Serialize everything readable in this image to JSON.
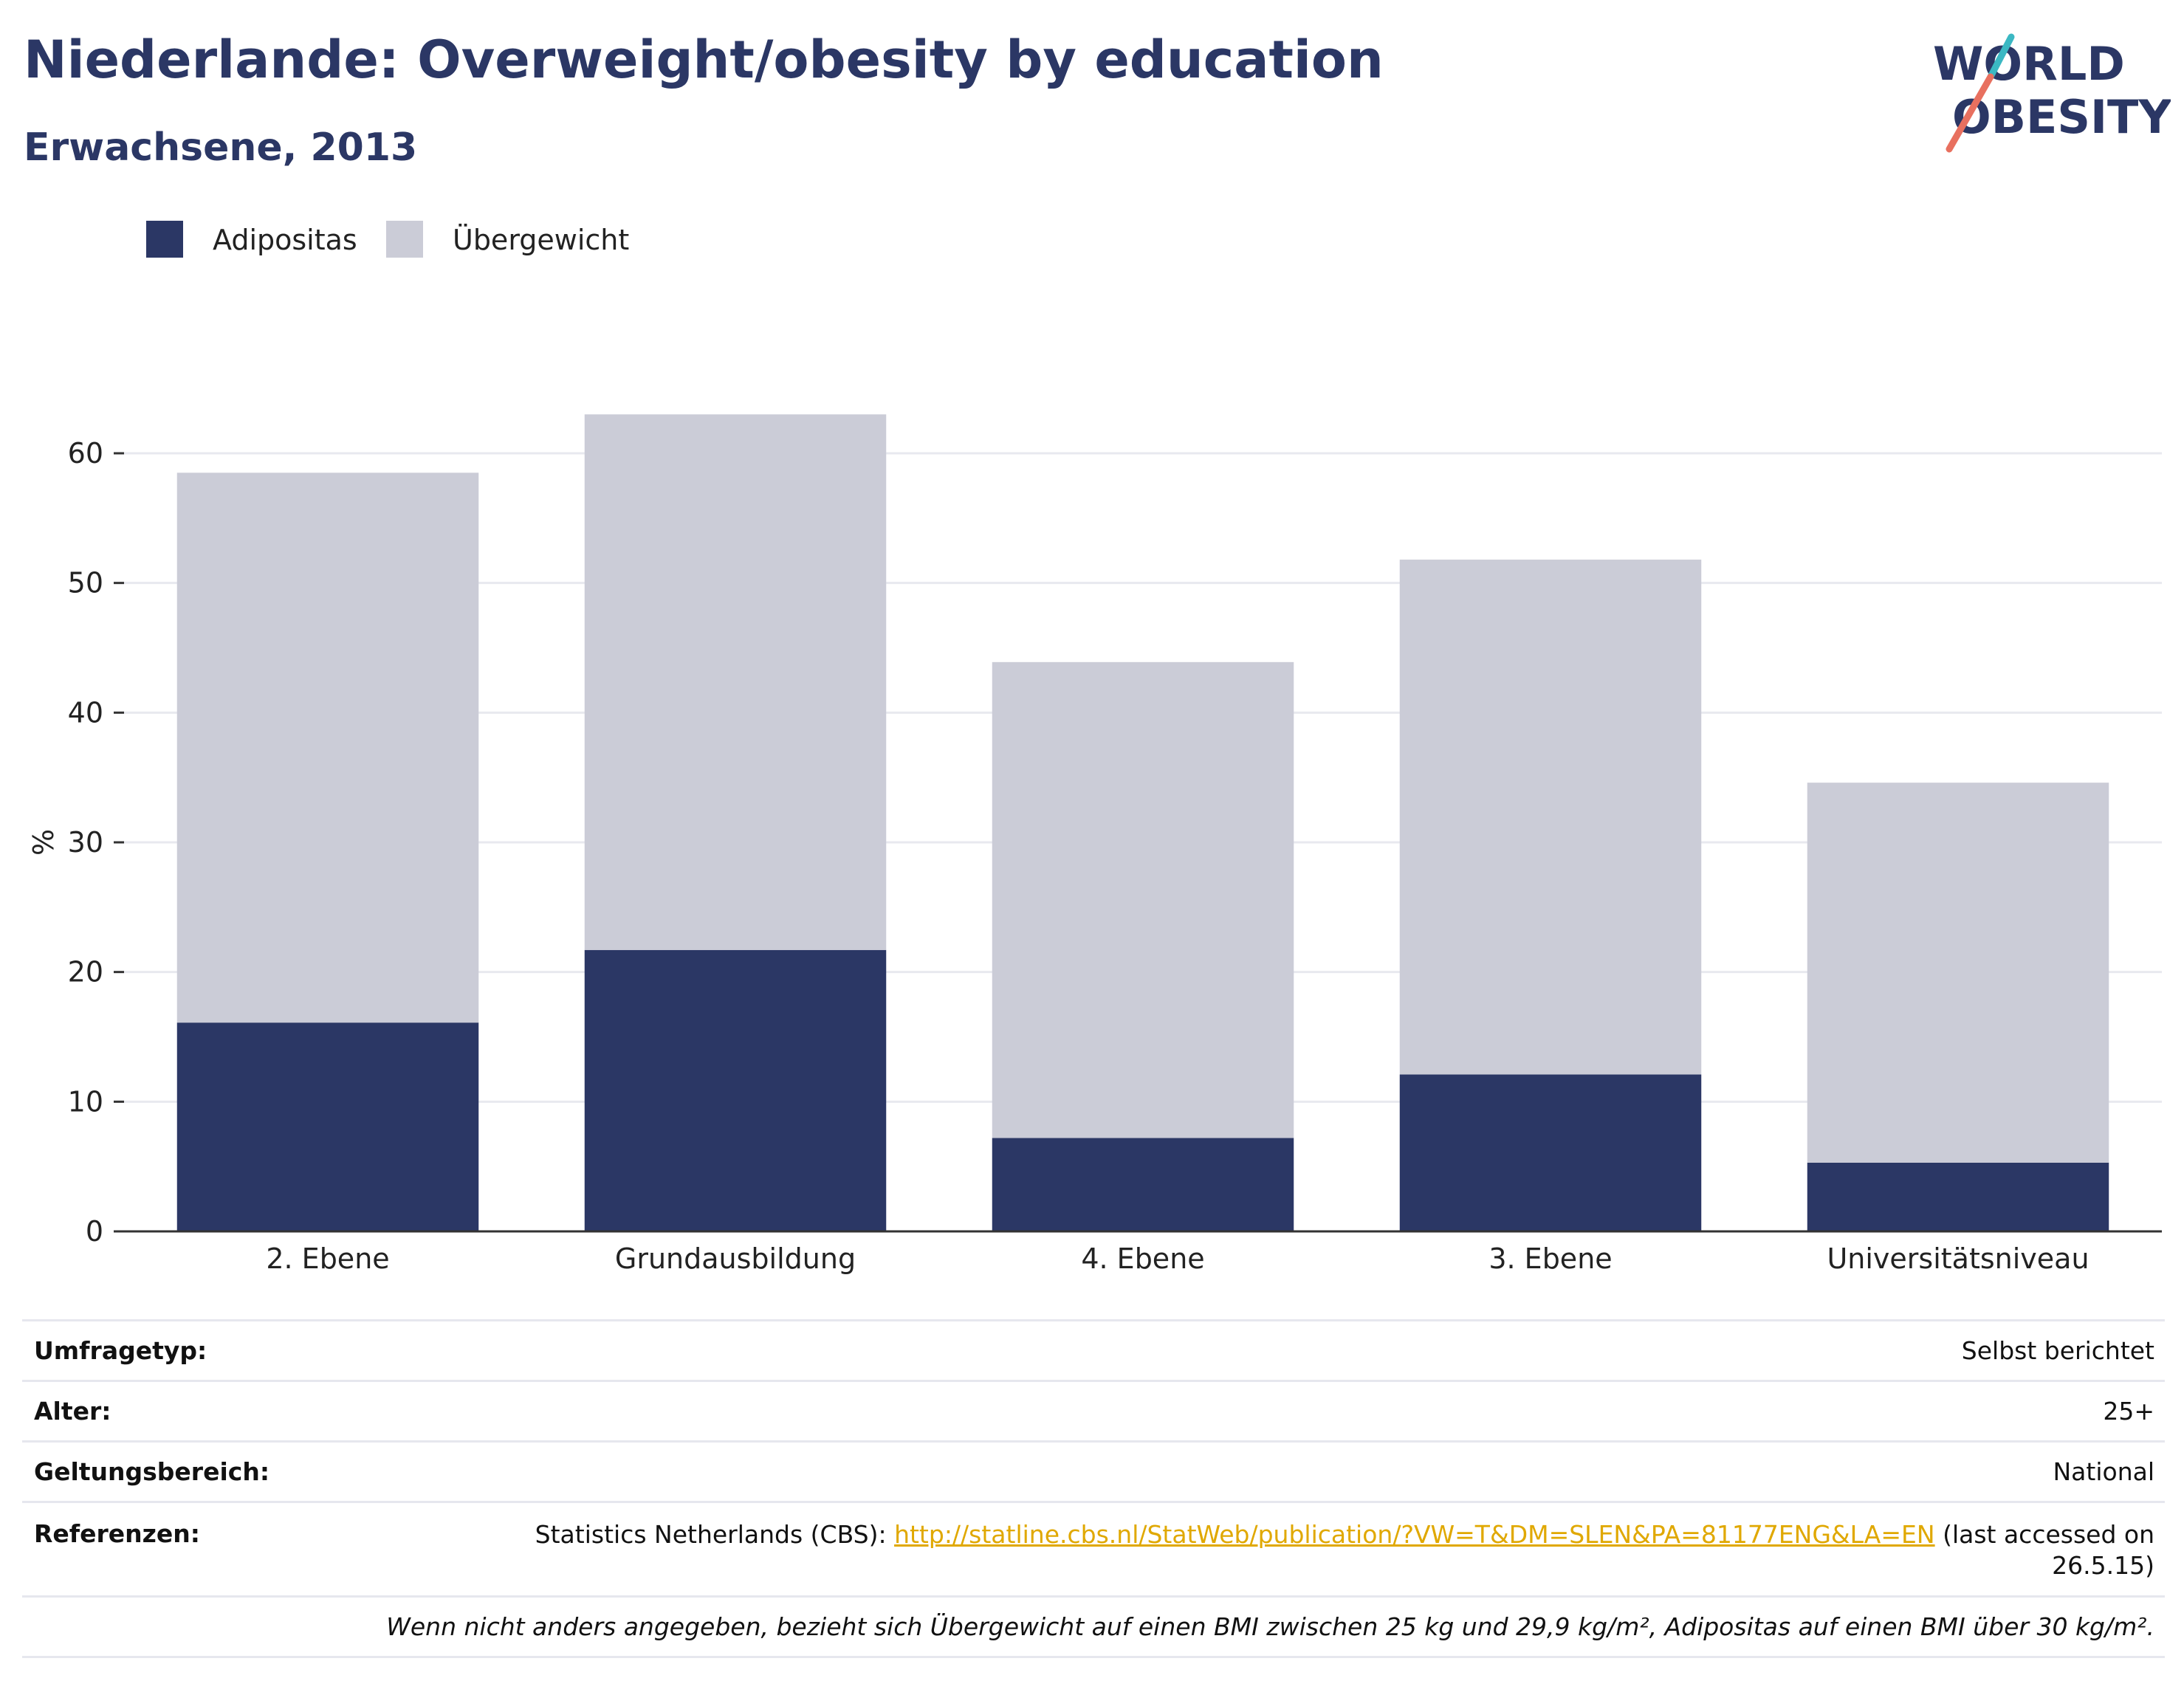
{
  "header": {
    "title": "Niederlande: Overweight/obesity by education",
    "subtitle": "Erwachsene, 2013"
  },
  "logo": {
    "line1": "WORLD",
    "line2": "OBESITY",
    "accent_teal": "#3bb8c3",
    "accent_coral": "#e8705f",
    "text_color": "#2b3765"
  },
  "colors": {
    "obesity": "#2b3765",
    "overweight": "#cbccd7",
    "grid": "#e8e9ef",
    "axis": "#333333"
  },
  "chart_data": {
    "type": "bar",
    "stacked": true,
    "categories": [
      "2. Ebene",
      "Grundausbildung",
      "4. Ebene",
      "3. Ebene",
      "Universitätsniveau"
    ],
    "series": [
      {
        "name": "Adipositas",
        "values": [
          16.1,
          21.7,
          7.2,
          12.1,
          5.3
        ]
      },
      {
        "name": "Übergewicht",
        "values": [
          42.4,
          41.3,
          36.7,
          39.7,
          29.3
        ]
      }
    ],
    "ylabel": "%",
    "ylim": [
      0,
      66
    ],
    "yticks": [
      0,
      10,
      20,
      30,
      40,
      50,
      60
    ],
    "grid": true,
    "legend_position": "top-left"
  },
  "info": {
    "survey_type_label": "Umfragetyp:",
    "survey_type_value": "Selbst berichtet",
    "age_label": "Alter:",
    "age_value": "25+",
    "scope_label": "Geltungsbereich:",
    "scope_value": "National",
    "references_label": "Referenzen:",
    "references_prefix": "Statistics Netherlands (CBS): ",
    "references_link": "http://statline.cbs.nl/StatWeb/publication/?VW=T&DM=SLEN&PA=81177ENG&LA=EN",
    "references_suffix": " (last accessed on 26.5.15)",
    "note": "Wenn nicht anders angegeben, bezieht sich Übergewicht auf einen BMI zwischen 25 kg und 29,9 kg/m², Adipositas auf einen BMI über 30 kg/m²."
  }
}
